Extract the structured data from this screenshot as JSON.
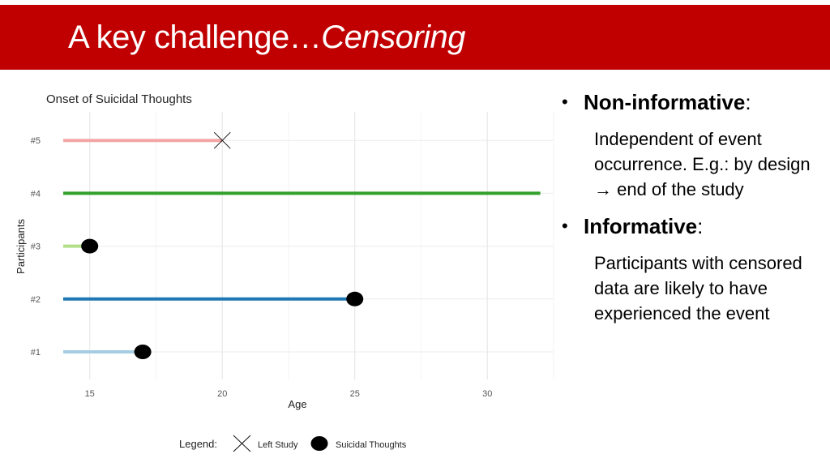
{
  "slide": {
    "title_plain": "A key challenge…",
    "title_italic": "Censoring",
    "accent_color": "#c00000"
  },
  "bullets": [
    {
      "heading": "Non-informative",
      "suffix": ":",
      "body": "Independent of event occurrence. E.g.: by design → end of the study"
    },
    {
      "heading": "Informative",
      "suffix": ":",
      "body": "Participants with censored data are likely to have experienced the event"
    }
  ],
  "chart_data": {
    "type": "line",
    "title": "Onset of Suicidal Thoughts",
    "xlabel": "Age",
    "ylabel": "Participants",
    "xlim": [
      14,
      32.5
    ],
    "x_ticks": [
      15,
      20,
      25,
      30
    ],
    "categories": [
      "#1",
      "#2",
      "#3",
      "#4",
      "#5"
    ],
    "grid": true,
    "series": [
      {
        "participant": "#5",
        "start": 14,
        "end": 20,
        "color": "#f4a6a6",
        "event": "Left Study"
      },
      {
        "participant": "#4",
        "start": 14,
        "end": 32,
        "color": "#33a02c",
        "event": ""
      },
      {
        "participant": "#3",
        "start": 14,
        "end": 15,
        "color": "#b2df8a",
        "event": "Suicidal Thoughts"
      },
      {
        "participant": "#2",
        "start": 14,
        "end": 25,
        "color": "#1f78b4",
        "event": "Suicidal Thoughts"
      },
      {
        "participant": "#1",
        "start": 14,
        "end": 17,
        "color": "#a6cee3",
        "event": "Suicidal Thoughts"
      }
    ],
    "legend": {
      "title": "Legend:",
      "placement": "bottom",
      "entries": [
        {
          "label": "Left Study",
          "marker": "cross-icon"
        },
        {
          "label": "Suicidal Thoughts",
          "marker": "filled-circle-icon"
        }
      ]
    }
  }
}
